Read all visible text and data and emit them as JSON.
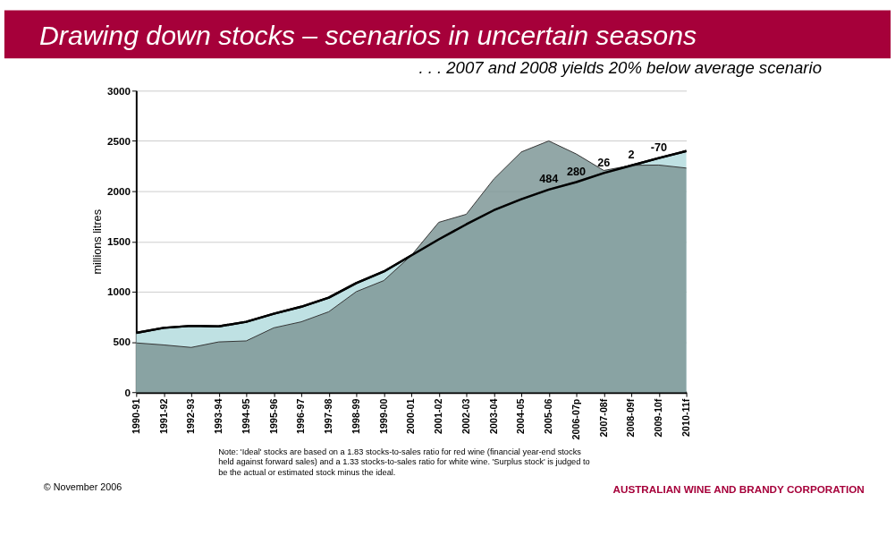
{
  "chart_data": {
    "type": "area",
    "title": "Drawing down stocks – scenarios in uncertain seasons",
    "subtitle": ". . . 2007 and 2008 yields 20% below average scenario",
    "ylabel": "millions litres",
    "categories": [
      "1990-91",
      "1991-92",
      "1992-93",
      "1993-94",
      "1994-95",
      "1995-96",
      "1996-97",
      "1997-98",
      "1998-99",
      "1999-00",
      "2000-01",
      "2001-02",
      "2002-03",
      "2003-04",
      "2004-05",
      "2005-06",
      "2006-07p",
      "2007-08f",
      "2008-09f",
      "2009-10f",
      "2010-11f"
    ],
    "series": [
      {
        "color": "#bfe1e3",
        "values": [
          590,
          640,
          660,
          655,
          700,
          780,
          850,
          940,
          1085,
          1200,
          1360,
          1520,
          1670,
          1810,
          1920,
          2016,
          2090,
          2180,
          2255,
          2330,
          2400
        ]
      },
      {
        "color": "#7f9898",
        "values": [
          490,
          470,
          445,
          500,
          510,
          640,
          700,
          800,
          1000,
          1110,
          1360,
          1690,
          1770,
          2120,
          2390,
          2500,
          2370,
          2206,
          2257,
          2260,
          2230
        ]
      }
    ],
    "ylim": [
      0,
      3000
    ],
    "yticks": [
      0,
      500,
      1000,
      1500,
      2000,
      2500,
      3000
    ],
    "grid": "y",
    "annotations": [
      {
        "text": "484",
        "x": "2005-06",
        "y": 2016
      },
      {
        "text": "280",
        "x": "2006-07p",
        "y": 2090
      },
      {
        "text": "26",
        "x": "2007-08f",
        "y": 2180
      },
      {
        "text": "2",
        "x": "2008-09f",
        "y": 2255
      },
      {
        "text": "-70",
        "x": "2009-10f",
        "y": 2330
      },
      "Note:  'Ideal' stocks are based on a 1.83 stocks-to-sales ratio for red wine (financial year-end stocks held against forward sales) and a 1.33 stocks-to-sales ratio for white wine. 'Surplus stock' is judged to be the actual or estimated stock minus the ideal.",
      "© November 2006",
      "AUSTRALIAN WINE AND BRANDY CORPORATION"
    ]
  }
}
